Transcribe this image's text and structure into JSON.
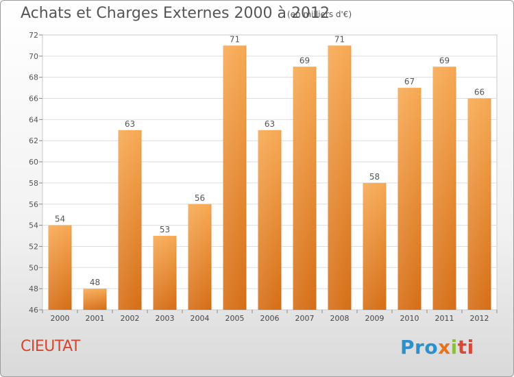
{
  "title": "Achats et Charges Externes 2000 à 2012",
  "unit": "(en milliers d'€)",
  "place": "CIEUTAT",
  "logo": {
    "part1": "Pro",
    "part2": "x",
    "part3": "i",
    "part4": "ti"
  },
  "colors": {
    "bar_light": "#f5a54f",
    "bar_dark": "#d9731d",
    "text": "#555555",
    "place": "#d6452e"
  },
  "chart_data": {
    "type": "bar",
    "title": "Achats et Charges Externes 2000 à 2012",
    "categories": [
      "2000",
      "2001",
      "2002",
      "2003",
      "2004",
      "2005",
      "2006",
      "2007",
      "2008",
      "2009",
      "2010",
      "2011",
      "2012"
    ],
    "values": [
      54,
      48,
      63,
      53,
      56,
      71,
      63,
      69,
      71,
      58,
      67,
      69,
      66
    ],
    "yticks": [
      46,
      48,
      50,
      52,
      54,
      56,
      58,
      60,
      62,
      64,
      66,
      68,
      70,
      72
    ],
    "ylim": [
      46,
      72
    ],
    "xlabel": "",
    "ylabel": "",
    "grid": true
  }
}
